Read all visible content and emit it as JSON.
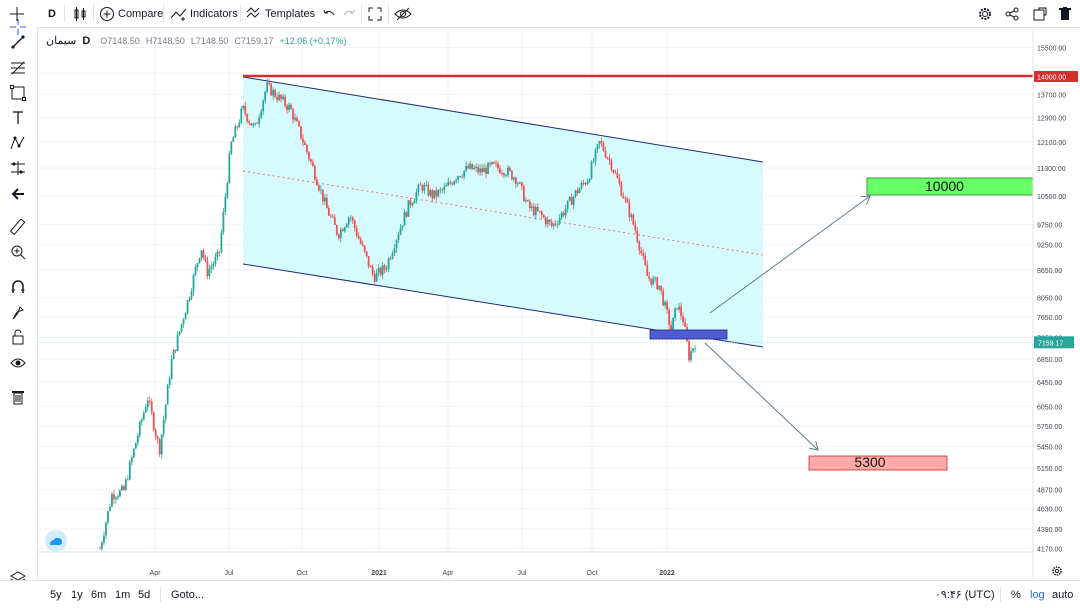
{
  "toolbar": {
    "interval": "D",
    "compare": "Compare",
    "indicators": "Indicators",
    "templates": "Templates"
  },
  "legend": {
    "symbol": "سیمان",
    "interval": "D",
    "open": "O7148.50",
    "high": "H7148.50",
    "low": "L7148.50",
    "close": "C7159.17",
    "change": "+12.06 (+0.17%)"
  },
  "bottom": {
    "ranges": [
      "5y",
      "1y",
      "6m",
      "1m",
      "5d"
    ],
    "goto": "Goto...",
    "time": "۰۹:۴۶ (UTC)",
    "percent": "%",
    "log": "log",
    "auto": "auto"
  },
  "colors": {
    "up": "#26a69a",
    "down": "#ef5350",
    "channel_fill": "#d6fbff",
    "resistance": "#d32f2f",
    "target_up": "#66ff66",
    "target_down": "#ffaaaa",
    "breakdown_zone": "#4f5bd5",
    "price_label": "#26a69a"
  },
  "chart_data": {
    "type": "candlestick",
    "price_axis_labels": [
      "15500.00",
      "14500.00",
      "13700.00",
      "12900.00",
      "12100.00",
      "11300.00",
      "10500.00",
      "9750.00",
      "9250.00",
      "8650.00",
      "8050.00",
      "7650.00",
      "7250.00",
      "6850.00",
      "6450.00",
      "6050.00",
      "5750.00",
      "5450.00",
      "5150.00",
      "4870.00",
      "4630.00",
      "4390.00",
      "4170.00"
    ],
    "time_axis_labels": [
      "Apr",
      "Jul",
      "Oct",
      "2021",
      "Apr",
      "Jul",
      "Oct",
      "2022"
    ],
    "scale": "log",
    "last_price": "7159.17",
    "annotations": {
      "resistance_label": "14000.00",
      "target_up": "10000",
      "target_down": "5300"
    },
    "price_path": [
      [
        0.0,
        4170
      ],
      [
        0.02,
        4800
      ],
      [
        0.04,
        4850
      ],
      [
        0.06,
        5500
      ],
      [
        0.08,
        6200
      ],
      [
        0.1,
        5400
      ],
      [
        0.12,
        6800
      ],
      [
        0.15,
        8100
      ],
      [
        0.17,
        9200
      ],
      [
        0.18,
        8600
      ],
      [
        0.2,
        9000
      ],
      [
        0.22,
        12000
      ],
      [
        0.24,
        13200
      ],
      [
        0.26,
        12500
      ],
      [
        0.28,
        14000
      ],
      [
        0.3,
        13600
      ],
      [
        0.32,
        13200
      ],
      [
        0.34,
        12200
      ],
      [
        0.36,
        11200
      ],
      [
        0.38,
        10200
      ],
      [
        0.4,
        9500
      ],
      [
        0.42,
        10000
      ],
      [
        0.44,
        9200
      ],
      [
        0.46,
        8500
      ],
      [
        0.48,
        8700
      ],
      [
        0.5,
        9500
      ],
      [
        0.52,
        10300
      ],
      [
        0.54,
        10800
      ],
      [
        0.56,
        10500
      ],
      [
        0.58,
        10700
      ],
      [
        0.6,
        11100
      ],
      [
        0.62,
        11300
      ],
      [
        0.64,
        11200
      ],
      [
        0.66,
        11350
      ],
      [
        0.68,
        11250
      ],
      [
        0.7,
        11000
      ],
      [
        0.72,
        10200
      ],
      [
        0.74,
        10000
      ],
      [
        0.76,
        9700
      ],
      [
        0.78,
        10100
      ],
      [
        0.8,
        10600
      ],
      [
        0.82,
        11000
      ],
      [
        0.84,
        12100
      ],
      [
        0.86,
        11400
      ],
      [
        0.88,
        10500
      ],
      [
        0.9,
        9600
      ],
      [
        0.92,
        8500
      ],
      [
        0.94,
        8300
      ],
      [
        0.96,
        7400
      ],
      [
        0.97,
        7900
      ],
      [
        0.98,
        7600
      ],
      [
        0.99,
        6900
      ],
      [
        1.0,
        7159
      ]
    ]
  }
}
